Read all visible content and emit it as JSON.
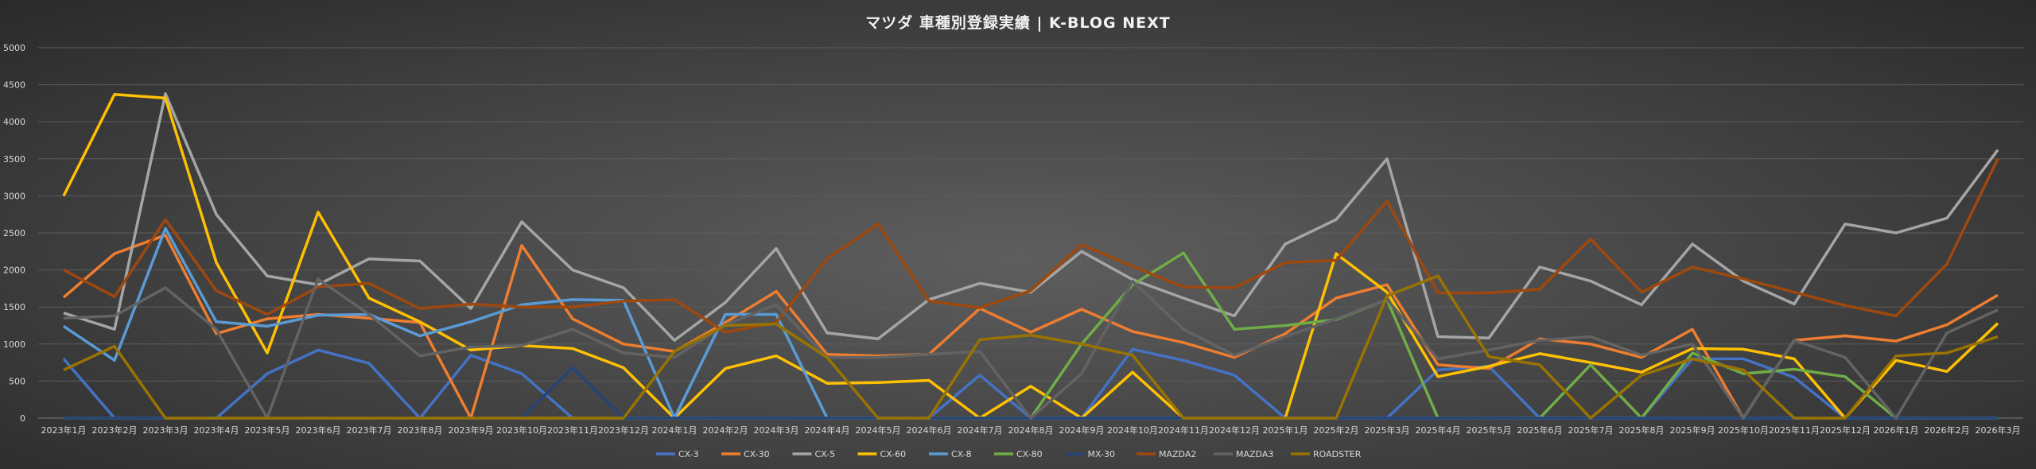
{
  "chart_data": {
    "type": "line",
    "title": "マツダ 車種別登録実績 | K-BLOG NEXT",
    "xlabel": "",
    "ylabel": "",
    "ylim": [
      0,
      5000
    ],
    "yticks": [
      0,
      500,
      1000,
      1500,
      2000,
      2500,
      3000,
      3500,
      4000,
      4500,
      5000
    ],
    "grid": true,
    "legend": "bottom",
    "categories": [
      "2023年1月",
      "2023年2月",
      "2023年3月",
      "2023年4月",
      "2023年5月",
      "2023年6月",
      "2023年7月",
      "2023年8月",
      "2023年9月",
      "2023年10月",
      "2023年11月",
      "2023年12月",
      "2024年1月",
      "2024年2月",
      "2024年3月",
      "2024年4月",
      "2024年5月",
      "2024年6月",
      "2024年7月",
      "2024年8月",
      "2024年9月",
      "2024年10月",
      "2024年11月",
      "2024年12月",
      "2025年1月",
      "2025年2月",
      "2025年3月",
      "2025年4月",
      "2025年5月",
      "2025年6月",
      "2025年7月",
      "2025年8月",
      "2025年9月",
      "2025年10月",
      "2025年11月",
      "2025年12月",
      "2026年1月",
      "2026年2月",
      "2026年3月"
    ],
    "series": [
      {
        "name": "CX-3",
        "color": "#4472c4",
        "values": [
          800,
          0,
          0,
          0,
          600,
          920,
          740,
          0,
          850,
          600,
          0,
          0,
          0,
          0,
          0,
          0,
          0,
          0,
          580,
          0,
          0,
          930,
          780,
          580,
          0,
          0,
          0,
          650,
          700,
          0,
          0,
          0,
          800,
          800,
          550,
          0,
          0,
          0,
          0
        ]
      },
      {
        "name": "CX-30",
        "color": "#ed7d31",
        "values": [
          1630,
          2220,
          2470,
          1140,
          1340,
          1400,
          1350,
          1290,
          0,
          2330,
          1340,
          1000,
          900,
          1290,
          1710,
          860,
          840,
          860,
          1480,
          1160,
          1470,
          1170,
          1020,
          820,
          1140,
          1620,
          1800,
          720,
          670,
          1070,
          1000,
          820,
          1200,
          0,
          1050,
          1110,
          1040,
          1260,
          1660
        ]
      },
      {
        "name": "CX-5",
        "color": "#a5a5a5",
        "values": [
          1420,
          1200,
          4380,
          2750,
          1920,
          1800,
          2150,
          2120,
          1480,
          2650,
          2000,
          1760,
          1050,
          1560,
          2290,
          1150,
          1070,
          1600,
          1820,
          1700,
          2250,
          1870,
          1620,
          1380,
          2350,
          2680,
          3500,
          1100,
          1080,
          2040,
          1850,
          1530,
          2350,
          1850,
          1540,
          2620,
          2500,
          2700,
          3620
        ]
      },
      {
        "name": "CX-60",
        "color": "#ffc000",
        "values": [
          3000,
          4370,
          4320,
          2100,
          880,
          2780,
          1620,
          1300,
          920,
          980,
          940,
          680,
          0,
          670,
          840,
          470,
          480,
          510,
          0,
          430,
          0,
          620,
          0,
          0,
          0,
          2220,
          1700,
          560,
          700,
          870,
          750,
          620,
          940,
          930,
          800,
          0,
          780,
          630,
          1280
        ]
      },
      {
        "name": "CX-8",
        "color": "#5b9bd5",
        "values": [
          1240,
          780,
          2560,
          1300,
          1240,
          1390,
          1400,
          1110,
          1300,
          1530,
          1600,
          1590,
          0,
          1400,
          1400,
          0,
          0,
          0,
          0,
          0,
          0,
          0,
          0,
          0,
          0,
          0,
          0,
          0,
          0,
          0,
          0,
          0,
          0,
          0,
          0,
          0,
          0,
          0,
          0
        ]
      },
      {
        "name": "CX-80",
        "color": "#70ad47",
        "values": [
          0,
          0,
          0,
          0,
          0,
          0,
          0,
          0,
          0,
          0,
          0,
          0,
          0,
          0,
          0,
          0,
          0,
          0,
          0,
          0,
          1000,
          1800,
          2230,
          1200,
          1250,
          1330,
          1600,
          0,
          0,
          0,
          720,
          0,
          880,
          600,
          660,
          560,
          0,
          0,
          0
        ]
      },
      {
        "name": "MX-30",
        "color": "#264478",
        "values": [
          0,
          0,
          0,
          0,
          0,
          0,
          0,
          0,
          0,
          0,
          680,
          0,
          0,
          0,
          0,
          0,
          0,
          0,
          0,
          0,
          0,
          0,
          0,
          0,
          0,
          0,
          0,
          0,
          0,
          0,
          0,
          0,
          0,
          0,
          0,
          0,
          0,
          0,
          0
        ]
      },
      {
        "name": "MAZDA2",
        "color": "#9e480e",
        "values": [
          2000,
          1640,
          2680,
          1720,
          1400,
          1770,
          1820,
          1480,
          1540,
          1500,
          1500,
          1580,
          1600,
          1160,
          1290,
          2150,
          2620,
          1580,
          1490,
          1720,
          2340,
          2050,
          1770,
          1760,
          2100,
          2130,
          2930,
          1690,
          1690,
          1740,
          2420,
          1700,
          2040,
          1880,
          1700,
          1520,
          1380,
          2080,
          3500
        ]
      },
      {
        "name": "MAZDA3",
        "color": "#636363",
        "values": [
          1350,
          1380,
          1760,
          1200,
          0,
          1880,
          1400,
          840,
          960,
          980,
          1200,
          880,
          820,
          1260,
          1530,
          820,
          820,
          860,
          900,
          0,
          600,
          1850,
          1200,
          850,
          1100,
          1340,
          1600,
          800,
          920,
          1050,
          1100,
          850,
          1000,
          0,
          1050,
          820,
          0,
          1150,
          1460
        ]
      },
      {
        "name": "ROADSTER",
        "color": "#997300",
        "values": [
          650,
          970,
          0,
          0,
          0,
          0,
          0,
          0,
          0,
          0,
          0,
          0,
          900,
          1250,
          1270,
          820,
          0,
          0,
          1060,
          1120,
          1000,
          850,
          0,
          0,
          0,
          0,
          1650,
          1920,
          830,
          720,
          0,
          580,
          800,
          650,
          0,
          0,
          840,
          880,
          1100
        ]
      }
    ]
  }
}
